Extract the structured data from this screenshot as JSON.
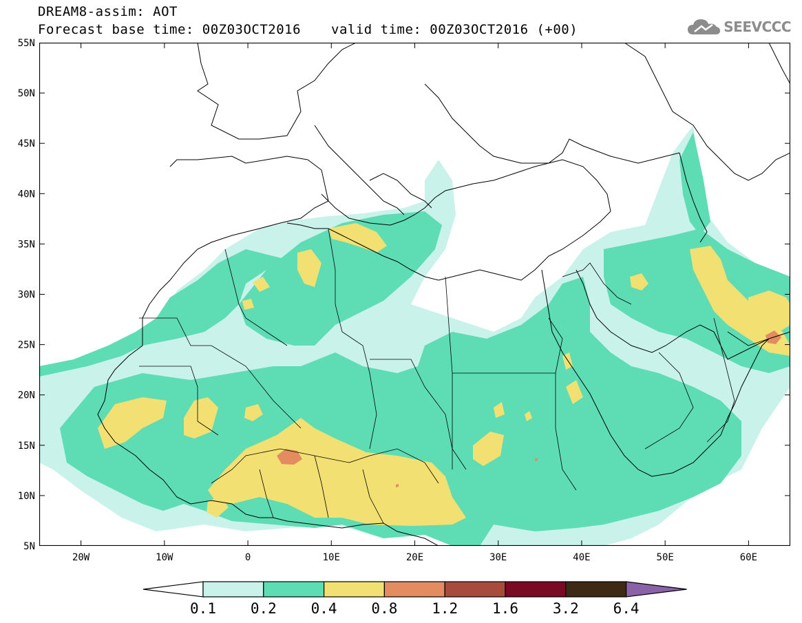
{
  "header": {
    "title_line1": "DREAM8-assim: AOT",
    "title_line2": "Forecast base time: 00Z03OCT2016",
    "valid_time": "valid time: 00Z03OCT2016 (+00)",
    "logo_text": "SEEVCCC",
    "logo_icon": "cloud-icon"
  },
  "map": {
    "lat_labels": [
      "55N",
      "50N",
      "45N",
      "40N",
      "35N",
      "30N",
      "25N",
      "20N",
      "15N",
      "10N",
      "5N"
    ],
    "lon_labels": [
      "20W",
      "10W",
      "0",
      "10E",
      "20E",
      "30E",
      "40E",
      "50E",
      "60E"
    ],
    "lat_range": [
      5,
      55
    ],
    "lon_range": [
      -25,
      65
    ],
    "field": "Aerosol Optical Thickness"
  },
  "colorbar": {
    "labels": [
      "0.1",
      "0.2",
      "0.4",
      "0.8",
      "1.2",
      "1.6",
      "3.2",
      "6.4"
    ],
    "colors": [
      "#c9f2eb",
      "#5edcb4",
      "#f3e072",
      "#e38c60",
      "#a84a3c",
      "#7a0a24",
      "#3d2914",
      "#8a62a8"
    ]
  }
}
